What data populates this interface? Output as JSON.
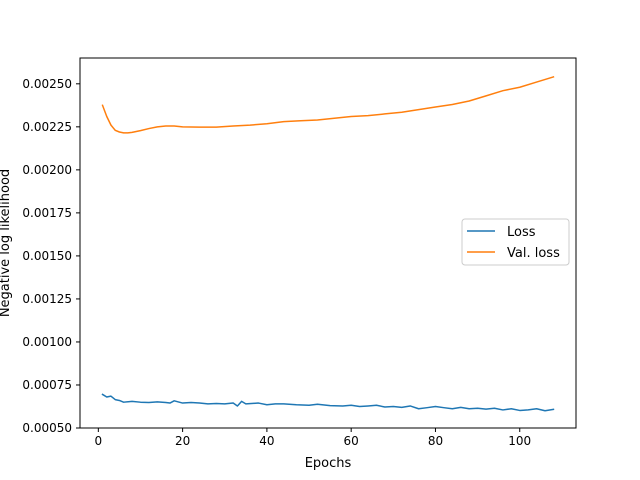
{
  "chart_data": {
    "type": "line",
    "title": "",
    "xlabel": "Epochs",
    "ylabel": "Negative log likelihood",
    "xlim": [
      -4.35,
      113.35
    ],
    "ylim": [
      0.0005,
      0.00265
    ],
    "xticks": [
      0,
      20,
      40,
      60,
      80,
      100
    ],
    "xtick_labels": [
      "0",
      "20",
      "40",
      "60",
      "80",
      "100"
    ],
    "yticks": [
      0.0005,
      0.00075,
      0.001,
      0.00125,
      0.0015,
      0.00175,
      0.002,
      0.00225,
      0.0025
    ],
    "ytick_labels": [
      "0.00050",
      "0.00075",
      "0.00100",
      "0.00125",
      "0.00150",
      "0.00175",
      "0.00200",
      "0.00225",
      "0.00250"
    ],
    "grid": false,
    "legend_position": "center-right",
    "series": [
      {
        "name": "Loss",
        "color": "#1f77b4",
        "x": [
          1,
          2,
          3,
          4,
          5,
          6,
          8,
          10,
          12,
          14,
          16,
          17,
          18,
          20,
          22,
          24,
          26,
          28,
          30,
          32,
          33,
          34,
          35,
          38,
          40,
          42,
          44,
          47,
          50,
          52,
          55,
          58,
          60,
          62,
          64,
          66,
          68,
          70,
          72,
          74,
          76,
          78,
          80,
          82,
          84,
          86,
          88,
          90,
          92,
          94,
          96,
          98,
          100,
          102,
          104,
          106,
          108
        ],
        "y": [
          0.000695,
          0.00068,
          0.000685,
          0.000665,
          0.00066,
          0.00065,
          0.000655,
          0.00065,
          0.000648,
          0.000652,
          0.000648,
          0.000645,
          0.000658,
          0.000645,
          0.000648,
          0.000645,
          0.00064,
          0.000642,
          0.00064,
          0.000645,
          0.000628,
          0.000655,
          0.00064,
          0.000645,
          0.000635,
          0.00064,
          0.00064,
          0.000635,
          0.000632,
          0.000638,
          0.00063,
          0.000628,
          0.000632,
          0.000625,
          0.000628,
          0.000632,
          0.000622,
          0.000625,
          0.00062,
          0.000628,
          0.000612,
          0.000618,
          0.000625,
          0.000618,
          0.000612,
          0.00062,
          0.000612,
          0.000615,
          0.00061,
          0.000615,
          0.000605,
          0.000612,
          0.000602,
          0.000605,
          0.000612,
          0.0006,
          0.000608
        ]
      },
      {
        "name": "Val. loss",
        "color": "#ff7f0e",
        "x": [
          1,
          2,
          3,
          4,
          5,
          6,
          7,
          8,
          10,
          12,
          14,
          16,
          18,
          20,
          24,
          28,
          32,
          36,
          40,
          44,
          48,
          52,
          56,
          60,
          64,
          68,
          72,
          76,
          80,
          84,
          88,
          92,
          96,
          100,
          104,
          108
        ],
        "y": [
          0.002375,
          0.00231,
          0.00226,
          0.00223,
          0.00222,
          0.002215,
          0.002215,
          0.002218,
          0.002228,
          0.00224,
          0.00225,
          0.002255,
          0.002255,
          0.00225,
          0.002248,
          0.002248,
          0.002255,
          0.00226,
          0.002268,
          0.00228,
          0.002285,
          0.00229,
          0.0023,
          0.00231,
          0.002315,
          0.002325,
          0.002335,
          0.00235,
          0.002365,
          0.00238,
          0.0024,
          0.00243,
          0.00246,
          0.00248,
          0.00251,
          0.00254
        ]
      }
    ]
  }
}
